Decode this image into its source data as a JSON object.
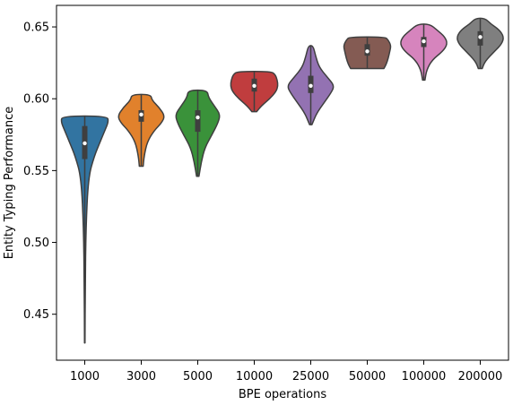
{
  "chart_data": {
    "type": "violin",
    "title": "",
    "xlabel": "BPE operations",
    "ylabel": "Entity Typing Performance",
    "ylim": [
      0.418,
      0.665
    ],
    "yticks": [
      "0.45",
      "0.50",
      "0.55",
      "0.60",
      "0.65"
    ],
    "grid": false,
    "categories": [
      "1000",
      "3000",
      "5000",
      "10000",
      "25000",
      "50000",
      "100000",
      "200000"
    ],
    "series": [
      {
        "category": "1000",
        "min": 0.43,
        "q1": 0.558,
        "median": 0.569,
        "q3": 0.581,
        "max": 0.588,
        "color": "#3274a1",
        "density": [
          [
            0.43,
            0.01
          ],
          [
            0.47,
            0.02
          ],
          [
            0.51,
            0.05
          ],
          [
            0.545,
            0.15
          ],
          [
            0.56,
            0.4
          ],
          [
            0.57,
            0.65
          ],
          [
            0.578,
            0.85
          ],
          [
            0.584,
            1.0
          ],
          [
            0.588,
            0.95
          ]
        ]
      },
      {
        "category": "3000",
        "min": 0.553,
        "q1": 0.584,
        "median": 0.589,
        "q3": 0.592,
        "max": 0.603,
        "color": "#e1812c",
        "density": [
          [
            0.553,
            0.08
          ],
          [
            0.56,
            0.12
          ],
          [
            0.57,
            0.25
          ],
          [
            0.578,
            0.55
          ],
          [
            0.583,
            0.85
          ],
          [
            0.588,
            1.0
          ],
          [
            0.594,
            0.75
          ],
          [
            0.599,
            0.45
          ],
          [
            0.603,
            0.4
          ]
        ]
      },
      {
        "category": "5000",
        "min": 0.546,
        "q1": 0.577,
        "median": 0.587,
        "q3": 0.592,
        "max": 0.606,
        "color": "#3a923a",
        "density": [
          [
            0.546,
            0.05
          ],
          [
            0.556,
            0.15
          ],
          [
            0.566,
            0.3
          ],
          [
            0.575,
            0.6
          ],
          [
            0.583,
            0.85
          ],
          [
            0.589,
            0.95
          ],
          [
            0.595,
            0.7
          ],
          [
            0.601,
            0.45
          ],
          [
            0.606,
            0.4
          ]
        ]
      },
      {
        "category": "10000",
        "min": 0.591,
        "q1": 0.605,
        "median": 0.609,
        "q3": 0.614,
        "max": 0.619,
        "color": "#c03d3e",
        "density": [
          [
            0.591,
            0.1
          ],
          [
            0.595,
            0.3
          ],
          [
            0.6,
            0.65
          ],
          [
            0.605,
            0.92
          ],
          [
            0.609,
            1.0
          ],
          [
            0.613,
            0.97
          ],
          [
            0.617,
            0.88
          ],
          [
            0.619,
            0.7
          ]
        ]
      },
      {
        "category": "25000",
        "min": 0.582,
        "q1": 0.604,
        "median": 0.609,
        "q3": 0.616,
        "max": 0.637,
        "color": "#9372b2",
        "density": [
          [
            0.582,
            0.05
          ],
          [
            0.59,
            0.25
          ],
          [
            0.597,
            0.55
          ],
          [
            0.604,
            0.85
          ],
          [
            0.609,
            1.0
          ],
          [
            0.615,
            0.7
          ],
          [
            0.622,
            0.35
          ],
          [
            0.63,
            0.2
          ],
          [
            0.637,
            0.1
          ]
        ]
      },
      {
        "category": "50000",
        "min": 0.621,
        "q1": 0.63,
        "median": 0.633,
        "q3": 0.638,
        "max": 0.643,
        "color": "#845b53",
        "density": [
          [
            0.621,
            0.7
          ],
          [
            0.624,
            0.8
          ],
          [
            0.628,
            0.88
          ],
          [
            0.633,
            0.95
          ],
          [
            0.637,
            1.0
          ],
          [
            0.641,
            0.88
          ],
          [
            0.643,
            0.75
          ]
        ]
      },
      {
        "category": "100000",
        "min": 0.613,
        "q1": 0.636,
        "median": 0.64,
        "q3": 0.643,
        "max": 0.652,
        "color": "#d684bd",
        "density": [
          [
            0.613,
            0.05
          ],
          [
            0.62,
            0.12
          ],
          [
            0.627,
            0.35
          ],
          [
            0.633,
            0.8
          ],
          [
            0.638,
            1.0
          ],
          [
            0.643,
            0.9
          ],
          [
            0.648,
            0.55
          ],
          [
            0.652,
            0.25
          ]
        ]
      },
      {
        "category": "200000",
        "min": 0.621,
        "q1": 0.637,
        "median": 0.643,
        "q3": 0.647,
        "max": 0.656,
        "color": "#7f7f7f",
        "density": [
          [
            0.621,
            0.08
          ],
          [
            0.626,
            0.2
          ],
          [
            0.633,
            0.6
          ],
          [
            0.638,
            0.9
          ],
          [
            0.643,
            1.0
          ],
          [
            0.648,
            0.8
          ],
          [
            0.652,
            0.45
          ],
          [
            0.656,
            0.2
          ]
        ]
      }
    ]
  }
}
